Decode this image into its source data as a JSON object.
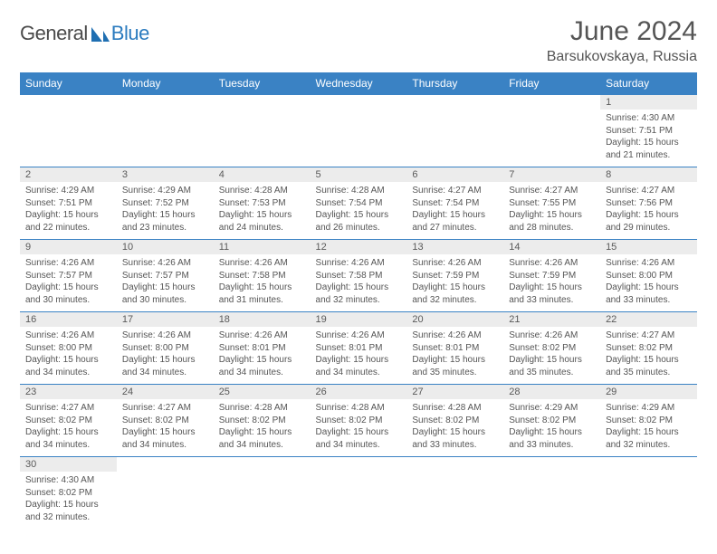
{
  "brand": {
    "part1": "General",
    "part2": "Blue"
  },
  "title": "June 2024",
  "location": "Barsukovskaya, Russia",
  "colors": {
    "header_bg": "#3a82c4",
    "header_text": "#ffffff",
    "daynum_bg": "#ececec",
    "daynum_text": "#595959",
    "cell_text": "#555555",
    "rule": "#3a82c4",
    "brand_accent": "#2b7bbf"
  },
  "weekdays": [
    "Sunday",
    "Monday",
    "Tuesday",
    "Wednesday",
    "Thursday",
    "Friday",
    "Saturday"
  ],
  "weeks": [
    [
      null,
      null,
      null,
      null,
      null,
      null,
      {
        "n": "1",
        "sr": "4:30 AM",
        "ss": "7:51 PM",
        "dl": "15 hours and 21 minutes."
      }
    ],
    [
      {
        "n": "2",
        "sr": "4:29 AM",
        "ss": "7:51 PM",
        "dl": "15 hours and 22 minutes."
      },
      {
        "n": "3",
        "sr": "4:29 AM",
        "ss": "7:52 PM",
        "dl": "15 hours and 23 minutes."
      },
      {
        "n": "4",
        "sr": "4:28 AM",
        "ss": "7:53 PM",
        "dl": "15 hours and 24 minutes."
      },
      {
        "n": "5",
        "sr": "4:28 AM",
        "ss": "7:54 PM",
        "dl": "15 hours and 26 minutes."
      },
      {
        "n": "6",
        "sr": "4:27 AM",
        "ss": "7:54 PM",
        "dl": "15 hours and 27 minutes."
      },
      {
        "n": "7",
        "sr": "4:27 AM",
        "ss": "7:55 PM",
        "dl": "15 hours and 28 minutes."
      },
      {
        "n": "8",
        "sr": "4:27 AM",
        "ss": "7:56 PM",
        "dl": "15 hours and 29 minutes."
      }
    ],
    [
      {
        "n": "9",
        "sr": "4:26 AM",
        "ss": "7:57 PM",
        "dl": "15 hours and 30 minutes."
      },
      {
        "n": "10",
        "sr": "4:26 AM",
        "ss": "7:57 PM",
        "dl": "15 hours and 30 minutes."
      },
      {
        "n": "11",
        "sr": "4:26 AM",
        "ss": "7:58 PM",
        "dl": "15 hours and 31 minutes."
      },
      {
        "n": "12",
        "sr": "4:26 AM",
        "ss": "7:58 PM",
        "dl": "15 hours and 32 minutes."
      },
      {
        "n": "13",
        "sr": "4:26 AM",
        "ss": "7:59 PM",
        "dl": "15 hours and 32 minutes."
      },
      {
        "n": "14",
        "sr": "4:26 AM",
        "ss": "7:59 PM",
        "dl": "15 hours and 33 minutes."
      },
      {
        "n": "15",
        "sr": "4:26 AM",
        "ss": "8:00 PM",
        "dl": "15 hours and 33 minutes."
      }
    ],
    [
      {
        "n": "16",
        "sr": "4:26 AM",
        "ss": "8:00 PM",
        "dl": "15 hours and 34 minutes."
      },
      {
        "n": "17",
        "sr": "4:26 AM",
        "ss": "8:00 PM",
        "dl": "15 hours and 34 minutes."
      },
      {
        "n": "18",
        "sr": "4:26 AM",
        "ss": "8:01 PM",
        "dl": "15 hours and 34 minutes."
      },
      {
        "n": "19",
        "sr": "4:26 AM",
        "ss": "8:01 PM",
        "dl": "15 hours and 34 minutes."
      },
      {
        "n": "20",
        "sr": "4:26 AM",
        "ss": "8:01 PM",
        "dl": "15 hours and 35 minutes."
      },
      {
        "n": "21",
        "sr": "4:26 AM",
        "ss": "8:02 PM",
        "dl": "15 hours and 35 minutes."
      },
      {
        "n": "22",
        "sr": "4:27 AM",
        "ss": "8:02 PM",
        "dl": "15 hours and 35 minutes."
      }
    ],
    [
      {
        "n": "23",
        "sr": "4:27 AM",
        "ss": "8:02 PM",
        "dl": "15 hours and 34 minutes."
      },
      {
        "n": "24",
        "sr": "4:27 AM",
        "ss": "8:02 PM",
        "dl": "15 hours and 34 minutes."
      },
      {
        "n": "25",
        "sr": "4:28 AM",
        "ss": "8:02 PM",
        "dl": "15 hours and 34 minutes."
      },
      {
        "n": "26",
        "sr": "4:28 AM",
        "ss": "8:02 PM",
        "dl": "15 hours and 34 minutes."
      },
      {
        "n": "27",
        "sr": "4:28 AM",
        "ss": "8:02 PM",
        "dl": "15 hours and 33 minutes."
      },
      {
        "n": "28",
        "sr": "4:29 AM",
        "ss": "8:02 PM",
        "dl": "15 hours and 33 minutes."
      },
      {
        "n": "29",
        "sr": "4:29 AM",
        "ss": "8:02 PM",
        "dl": "15 hours and 32 minutes."
      }
    ],
    [
      {
        "n": "30",
        "sr": "4:30 AM",
        "ss": "8:02 PM",
        "dl": "15 hours and 32 minutes."
      },
      null,
      null,
      null,
      null,
      null,
      null
    ]
  ],
  "labels": {
    "sunrise": "Sunrise: ",
    "sunset": "Sunset: ",
    "daylight": "Daylight: "
  }
}
